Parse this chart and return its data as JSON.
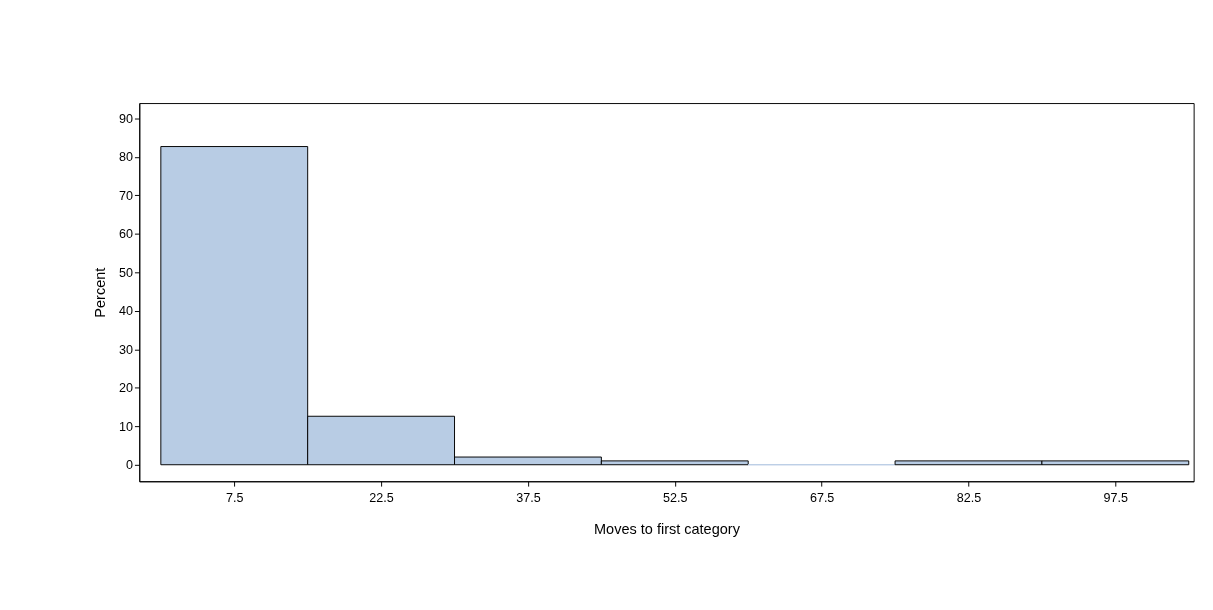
{
  "chart_data": {
    "type": "histogram",
    "xlabel": "Moves to first category",
    "ylabel": "Percent",
    "bins": [
      0,
      15,
      30,
      45,
      60,
      75,
      90,
      105
    ],
    "values": [
      82.7,
      12.6,
      2.0,
      1.0,
      0,
      1.0,
      1.0
    ],
    "color": "#b8cce4",
    "xlim": [
      -2.2,
      105.5
    ],
    "xticks": [
      7.5,
      22.5,
      37.5,
      52.5,
      67.5,
      82.5,
      97.5
    ],
    "ylim": [
      -4.3,
      94
    ],
    "yticks": [
      0,
      10,
      20,
      30,
      40,
      50,
      60,
      70,
      80,
      90
    ],
    "grid": false
  }
}
